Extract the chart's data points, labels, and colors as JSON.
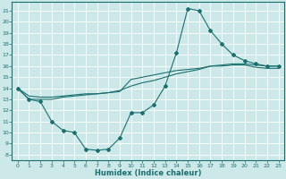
{
  "xlabel": "Humidex (Indice chaleur)",
  "bg_color": "#cce8e8",
  "grid_color": "#ffffff",
  "line_color": "#1a7070",
  "xlim": [
    -0.5,
    23.5
  ],
  "ylim": [
    7.5,
    21.8
  ],
  "yticks": [
    8,
    9,
    10,
    11,
    12,
    13,
    14,
    15,
    16,
    17,
    18,
    19,
    20,
    21
  ],
  "xticks": [
    0,
    1,
    2,
    3,
    4,
    5,
    6,
    7,
    8,
    9,
    10,
    11,
    12,
    13,
    14,
    15,
    16,
    17,
    18,
    19,
    20,
    21,
    22,
    23
  ],
  "line1_x": [
    0,
    1,
    2,
    3,
    4,
    5,
    6,
    7,
    8,
    9,
    10,
    11,
    12,
    13,
    14,
    15,
    16,
    17,
    18,
    19,
    20,
    21,
    22,
    23
  ],
  "line1_y": [
    14.0,
    13.0,
    12.8,
    11.0,
    10.2,
    10.0,
    8.5,
    8.4,
    8.5,
    9.5,
    11.8,
    11.8,
    12.5,
    14.2,
    17.2,
    21.2,
    21.0,
    19.2,
    18.0,
    17.0,
    16.5,
    16.2,
    16.0,
    16.0
  ],
  "line2_x": [
    0,
    1,
    2,
    3,
    4,
    5,
    6,
    7,
    8,
    9,
    10,
    11,
    12,
    13,
    14,
    15,
    16,
    17,
    18,
    19,
    20,
    21,
    22,
    23
  ],
  "line2_y": [
    14.0,
    13.3,
    13.2,
    13.2,
    13.3,
    13.4,
    13.5,
    13.5,
    13.6,
    13.8,
    14.2,
    14.5,
    14.7,
    15.0,
    15.3,
    15.5,
    15.7,
    16.0,
    16.1,
    16.2,
    16.2,
    16.1,
    16.0,
    16.0
  ],
  "line3_x": [
    0,
    1,
    2,
    3,
    4,
    5,
    6,
    7,
    8,
    9,
    10,
    11,
    12,
    13,
    14,
    15,
    16,
    17,
    18,
    19,
    20,
    21,
    22,
    23
  ],
  "line3_y": [
    14.0,
    13.0,
    13.0,
    13.0,
    13.2,
    13.3,
    13.4,
    13.5,
    13.6,
    13.7,
    14.8,
    15.0,
    15.2,
    15.4,
    15.6,
    15.7,
    15.8,
    16.0,
    16.0,
    16.1,
    16.1,
    15.9,
    15.8,
    15.8
  ]
}
